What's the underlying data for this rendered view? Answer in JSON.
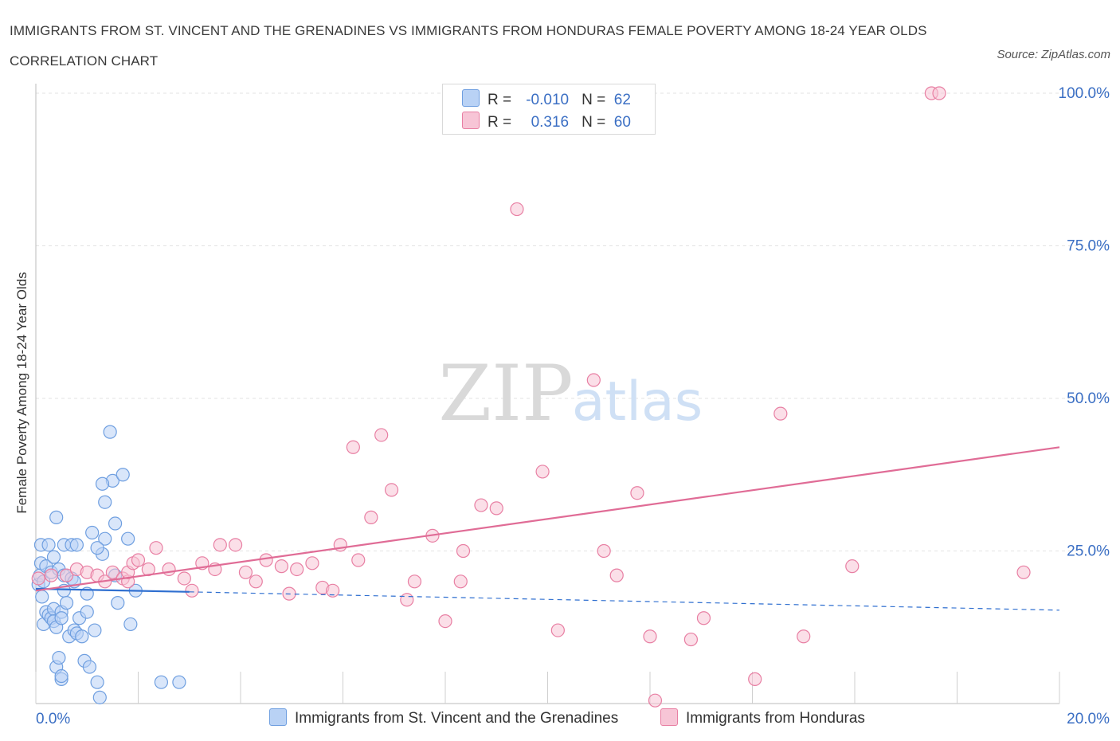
{
  "title": "IMMIGRANTS FROM ST. VINCENT AND THE GRENADINES VS IMMIGRANTS FROM HONDURAS FEMALE POVERTY AMONG 18-24 YEAR OLDS CORRELATION CHART",
  "source": "Source: ZipAtlas.com",
  "watermark": {
    "zip": "ZIP",
    "atlas": "atlas"
  },
  "colors": {
    "blue": "#6f9fe0",
    "blue_fill": "#b9d2f5",
    "pink": "#e87fa3",
    "pink_fill": "#f7c5d6",
    "blue_line": "#2f6fd0",
    "pink_line": "#e06c96",
    "axis_text": "#3b6fc4",
    "grid": "#e3e3e3"
  },
  "legend": {
    "rows": [
      {
        "r_label": "R =",
        "r_value": "-0.010",
        "n_label": "N =",
        "n_value": "62"
      },
      {
        "r_label": "R =",
        "r_value": "0.316",
        "n_label": "N =",
        "n_value": "60"
      }
    ]
  },
  "chart_data": {
    "type": "scatter",
    "title": "IMMIGRANTS FROM ST. VINCENT AND THE GRENADINES VS IMMIGRANTS FROM HONDURAS FEMALE POVERTY AMONG 18-24 YEAR OLDS CORRELATION CHART",
    "xlabel": "",
    "ylabel": "Female Poverty Among 18-24 Year Olds",
    "xlim": [
      0,
      20
    ],
    "ylim": [
      0,
      100
    ],
    "x_tick_labels": [
      "0.0%",
      "20.0%"
    ],
    "y_tick_labels": [
      "25.0%",
      "50.0%",
      "75.0%",
      "100.0%"
    ],
    "y_ticks": [
      25,
      50,
      75,
      100
    ],
    "x_minor_ticks": [
      0,
      2,
      4,
      6,
      8,
      10,
      12,
      14,
      16,
      18,
      20
    ],
    "grid": true,
    "legend_position": "bottom",
    "series": [
      {
        "name": "Immigrants from St. Vincent and the Grenadines",
        "color": "blue",
        "r": -0.01,
        "n": 62,
        "trend": {
          "x0": 0,
          "y0": 18.8,
          "x1": 3.0,
          "y1": 18.3,
          "dashed_to_x": 20,
          "dashed_to_y": 15.3
        },
        "points": [
          [
            0.05,
            19.5
          ],
          [
            0.08,
            21.0
          ],
          [
            0.1,
            23.0
          ],
          [
            0.1,
            26.0
          ],
          [
            0.12,
            17.5
          ],
          [
            0.15,
            20.0
          ],
          [
            0.15,
            13.0
          ],
          [
            0.2,
            22.5
          ],
          [
            0.2,
            15.0
          ],
          [
            0.25,
            14.5
          ],
          [
            0.25,
            26.0
          ],
          [
            0.3,
            14.0
          ],
          [
            0.3,
            21.5
          ],
          [
            0.35,
            15.5
          ],
          [
            0.35,
            13.5
          ],
          [
            0.35,
            24.0
          ],
          [
            0.4,
            12.5
          ],
          [
            0.4,
            30.5
          ],
          [
            0.4,
            6.0
          ],
          [
            0.45,
            7.5
          ],
          [
            0.45,
            22.0
          ],
          [
            0.5,
            4.0
          ],
          [
            0.5,
            15.0
          ],
          [
            0.5,
            4.5
          ],
          [
            0.5,
            14.0
          ],
          [
            0.55,
            26.0
          ],
          [
            0.55,
            21.0
          ],
          [
            0.55,
            18.5
          ],
          [
            0.6,
            16.5
          ],
          [
            0.65,
            11.0
          ],
          [
            0.7,
            20.5
          ],
          [
            0.7,
            26.0
          ],
          [
            0.75,
            12.0
          ],
          [
            0.75,
            20.0
          ],
          [
            0.8,
            26.0
          ],
          [
            0.8,
            11.5
          ],
          [
            0.85,
            14.0
          ],
          [
            0.9,
            11.0
          ],
          [
            0.95,
            7.0
          ],
          [
            1.0,
            15.0
          ],
          [
            1.05,
            6.0
          ],
          [
            1.0,
            18.0
          ],
          [
            1.1,
            28.0
          ],
          [
            1.15,
            12.0
          ],
          [
            1.2,
            3.5
          ],
          [
            1.25,
            1.0
          ],
          [
            1.3,
            24.5
          ],
          [
            1.35,
            27.0
          ],
          [
            1.5,
            36.5
          ],
          [
            1.3,
            36.0
          ],
          [
            1.35,
            33.0
          ],
          [
            1.45,
            44.5
          ],
          [
            1.55,
            29.5
          ],
          [
            1.6,
            16.5
          ],
          [
            1.7,
            37.5
          ],
          [
            1.8,
            27.0
          ],
          [
            1.85,
            13.0
          ],
          [
            1.95,
            18.5
          ],
          [
            1.55,
            21.0
          ],
          [
            2.45,
            3.5
          ],
          [
            2.8,
            3.5
          ],
          [
            1.2,
            25.5
          ]
        ]
      },
      {
        "name": "Immigrants from Honduras",
        "color": "pink",
        "r": 0.316,
        "n": 60,
        "trend": {
          "x0": 0,
          "y0": 18.5,
          "x1": 20,
          "y1": 42.0
        },
        "points": [
          [
            0.05,
            20.5
          ],
          [
            0.3,
            21.0
          ],
          [
            0.6,
            21.0
          ],
          [
            0.8,
            22.0
          ],
          [
            1.0,
            21.5
          ],
          [
            1.2,
            21.0
          ],
          [
            1.35,
            20.0
          ],
          [
            1.5,
            21.5
          ],
          [
            1.7,
            20.5
          ],
          [
            1.8,
            20.0
          ],
          [
            1.8,
            21.5
          ],
          [
            1.9,
            23.0
          ],
          [
            2.0,
            23.5
          ],
          [
            2.2,
            22.0
          ],
          [
            2.35,
            25.5
          ],
          [
            2.6,
            22.0
          ],
          [
            2.9,
            20.5
          ],
          [
            3.05,
            18.5
          ],
          [
            3.25,
            23.0
          ],
          [
            3.5,
            22.0
          ],
          [
            3.6,
            26.0
          ],
          [
            3.9,
            26.0
          ],
          [
            4.1,
            21.5
          ],
          [
            4.3,
            20.0
          ],
          [
            4.5,
            23.5
          ],
          [
            4.8,
            22.5
          ],
          [
            4.95,
            18.0
          ],
          [
            5.1,
            22.0
          ],
          [
            5.4,
            23.0
          ],
          [
            5.6,
            19.0
          ],
          [
            5.8,
            18.5
          ],
          [
            5.95,
            26.0
          ],
          [
            6.2,
            42.0
          ],
          [
            6.3,
            23.5
          ],
          [
            6.55,
            30.5
          ],
          [
            6.75,
            44.0
          ],
          [
            6.95,
            35.0
          ],
          [
            7.25,
            17.0
          ],
          [
            7.4,
            20.0
          ],
          [
            7.75,
            27.5
          ],
          [
            8.0,
            13.5
          ],
          [
            8.3,
            20.0
          ],
          [
            8.35,
            25.0
          ],
          [
            8.7,
            32.5
          ],
          [
            9.0,
            32.0
          ],
          [
            9.4,
            81.0
          ],
          [
            9.9,
            38.0
          ],
          [
            10.2,
            12.0
          ],
          [
            10.9,
            53.0
          ],
          [
            11.1,
            25.0
          ],
          [
            11.35,
            21.0
          ],
          [
            11.75,
            34.5
          ],
          [
            12.0,
            11.0
          ],
          [
            12.1,
            0.5
          ],
          [
            12.8,
            10.5
          ],
          [
            13.05,
            14.0
          ],
          [
            14.05,
            4.0
          ],
          [
            14.55,
            47.5
          ],
          [
            15.0,
            11.0
          ],
          [
            15.95,
            22.5
          ]
        ],
        "extra_points": [
          [
            17.5,
            100
          ],
          [
            17.65,
            100
          ],
          [
            19.3,
            21.5
          ]
        ]
      }
    ]
  },
  "bottom_legend": [
    {
      "label": "Immigrants from St. Vincent and the Grenadines"
    },
    {
      "label": "Immigrants from Honduras"
    }
  ]
}
